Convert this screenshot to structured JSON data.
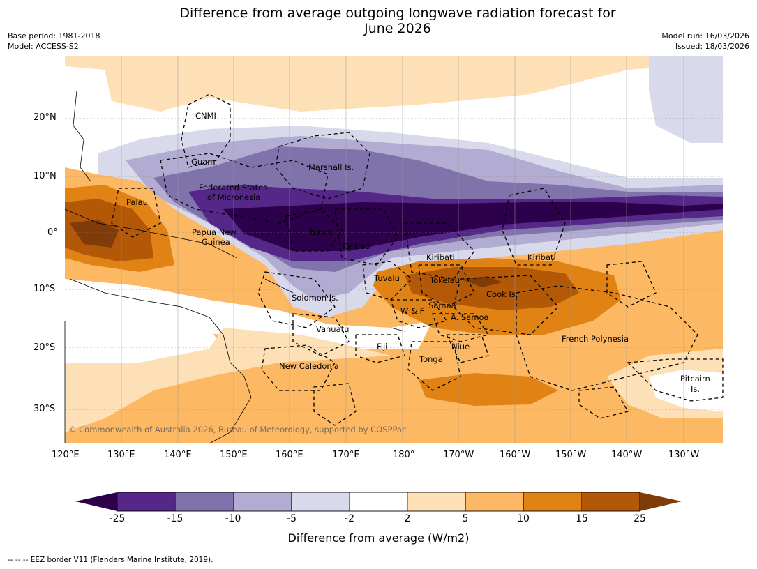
{
  "header": {
    "title_line1": "Difference from average outgoing longwave radiation forecast for",
    "title_line2": "June 2026",
    "base_period": "Base period: 1981-2018",
    "model": "Model: ACCESS-S2",
    "model_run": "Model run: 16/03/2026",
    "issued": "Issued: 18/03/2026"
  },
  "map": {
    "lat_labels": [
      "20°N",
      "10°N",
      "0°",
      "10°S",
      "20°S",
      "30°S"
    ],
    "lon_labels": [
      "120°E",
      "130°E",
      "140°E",
      "150°E",
      "160°E",
      "170°E",
      "180°",
      "170°W",
      "160°W",
      "150°W",
      "140°W",
      "130°W"
    ],
    "regions": {
      "cnmi": "CNMI",
      "guam": "Guam",
      "marshall": "Marshall Is.",
      "fsm_1": "Federated States",
      "fsm_2": "of Micronesia",
      "palau": "Palau",
      "png_1": "Papua New",
      "png_2": "Guinea",
      "nauru": "Nauru",
      "kiribati_w": "Kiribati",
      "kiribati_c": "Kiribati",
      "kiribati_e": "Kiribati",
      "tuvalu": "Tuvalu",
      "tokelau": "Tokelau",
      "cook": "Cook Is.",
      "solomon": "Solomon Is.",
      "samoa": "Samoa",
      "wf": "W & F",
      "asamoa": "A. Samoa",
      "vanuatu": "Vanuatu",
      "fiji": "Fiji",
      "niue": "Niue",
      "tonga": "Tonga",
      "frpoly": "French Polynesia",
      "newcal": "New Caledonia",
      "pitcairn_1": "Pitcairn",
      "pitcairn_2": "Is."
    },
    "copyright": "© Commonwealth of Australia 2026, Bureau of Meteorology, supported by COSPPac"
  },
  "colorbar": {
    "ticks": [
      "-25",
      "-15",
      "-10",
      "-5",
      "-2",
      "2",
      "5",
      "10",
      "15",
      "25"
    ],
    "colors": [
      "#2d004b",
      "#542788",
      "#8073ac",
      "#b2abd2",
      "#d8daeb",
      "#ffffff",
      "#fee0b6",
      "#fdb863",
      "#e08214",
      "#b35806",
      "#7f3b08"
    ],
    "label": "Difference from average (W/m2)"
  },
  "footer": "--  --  -- EEZ border V11 (Flanders Marine Institute, 2019)."
}
